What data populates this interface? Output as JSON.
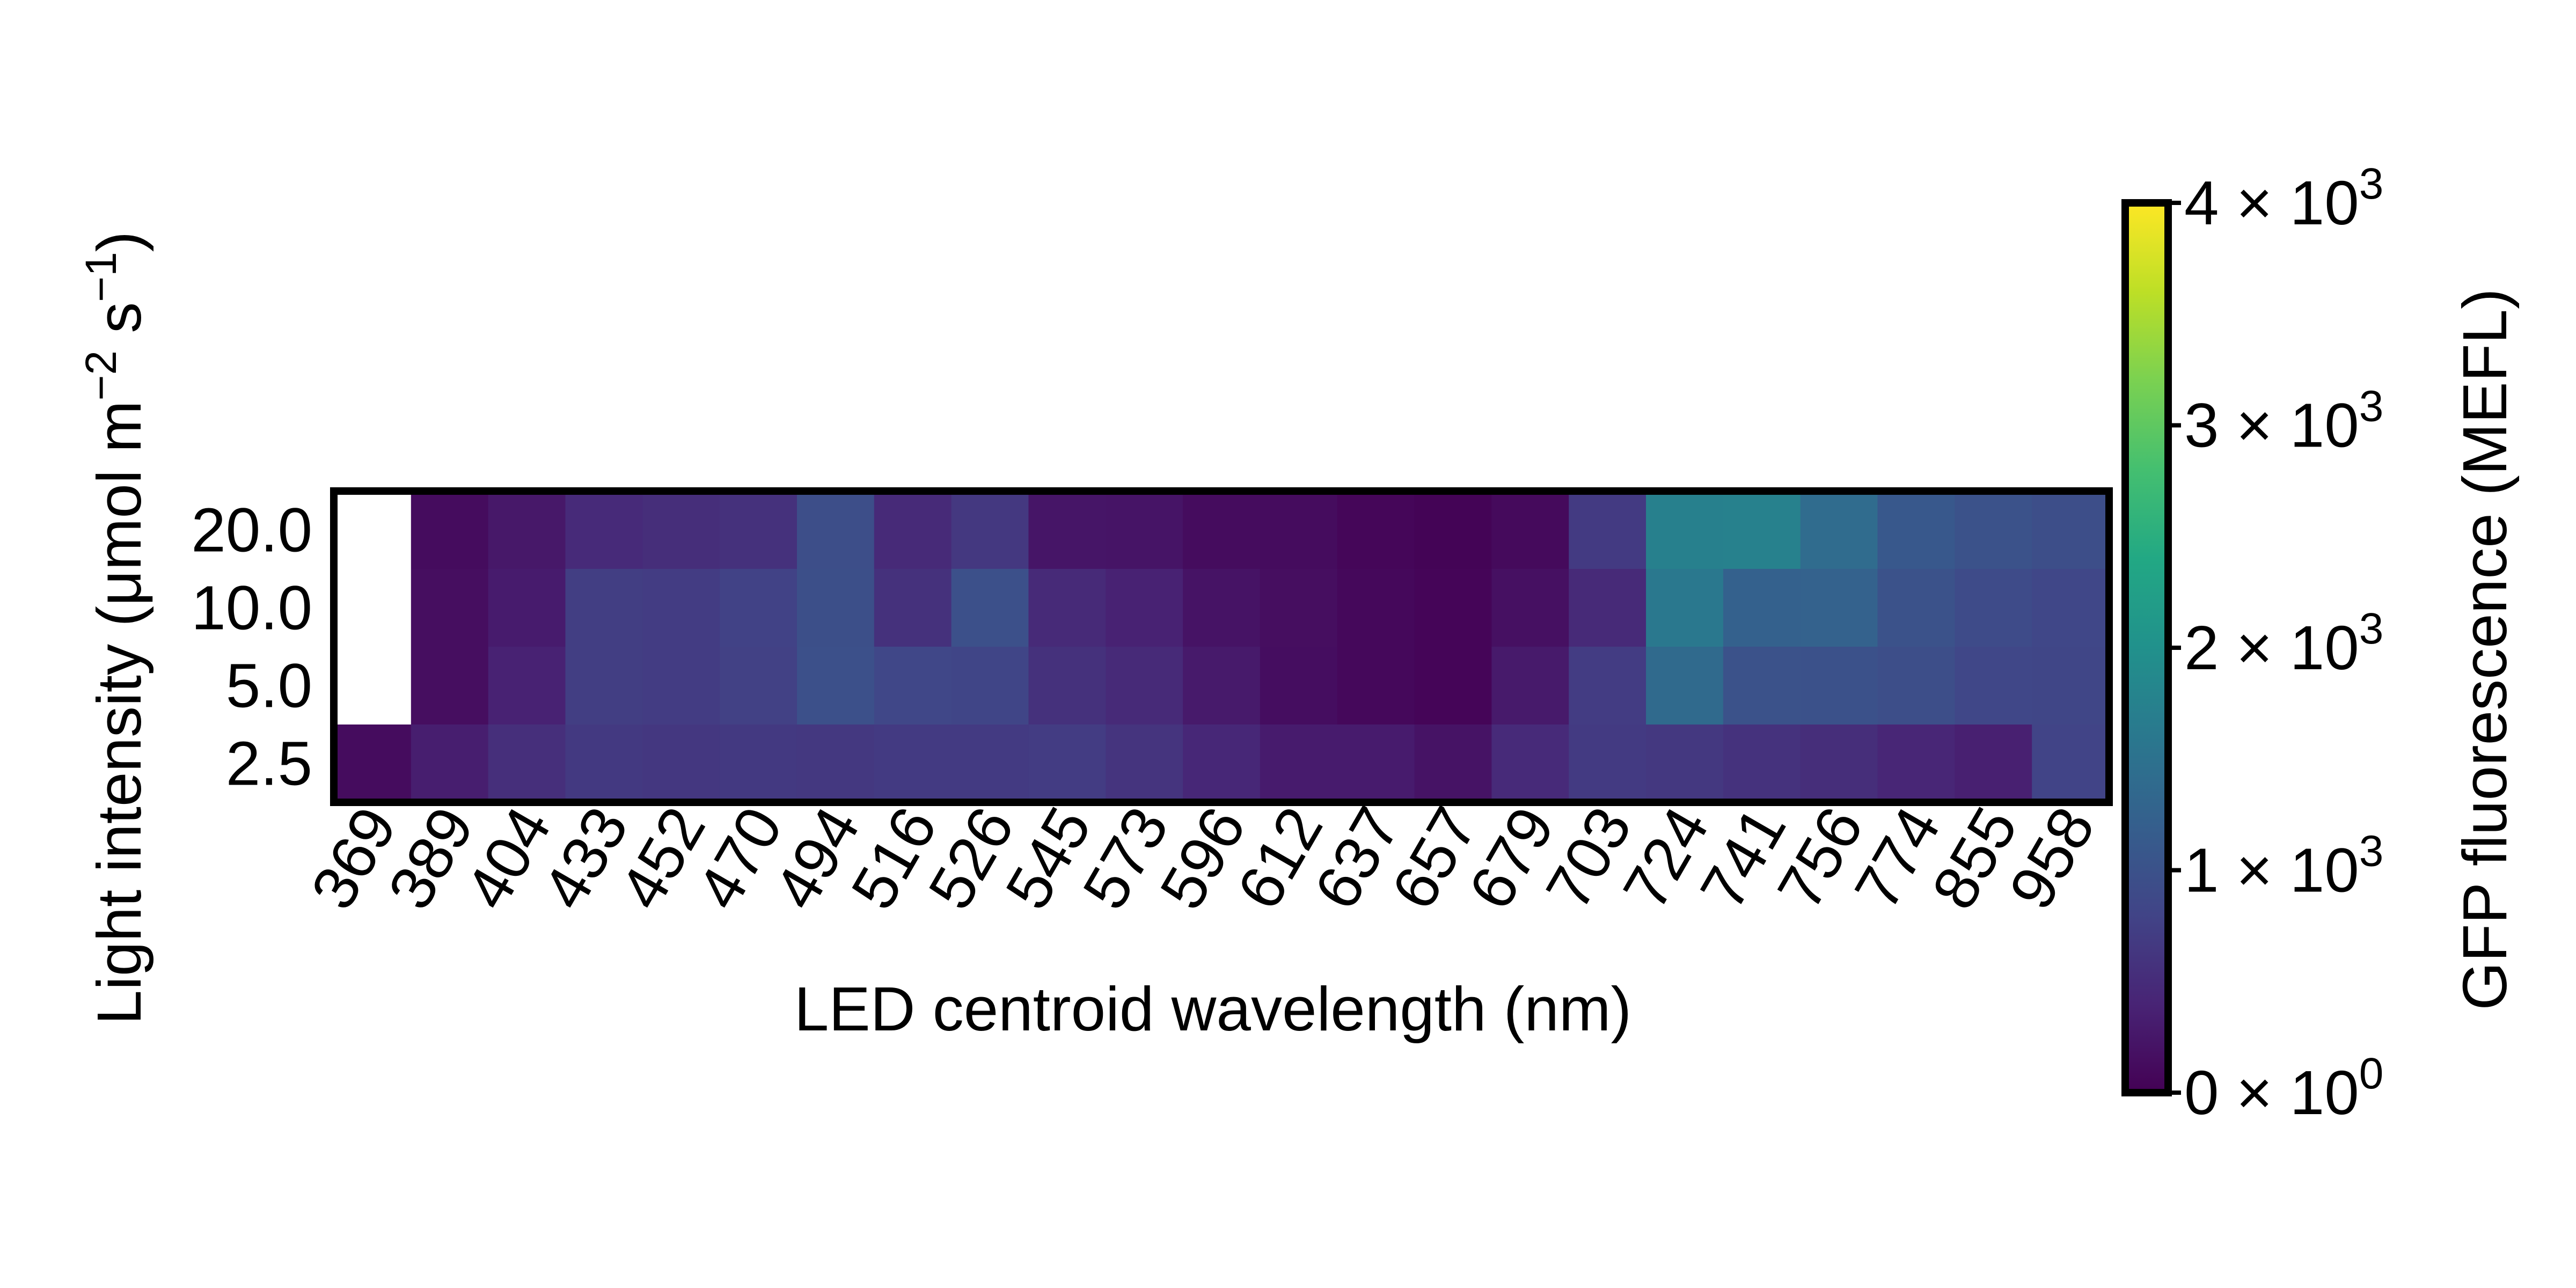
{
  "chart_data": {
    "type": "heatmap",
    "xlabel": "LED centroid wavelength (nm)",
    "ylabel": "Light intensity (μmol m−2 s−1)",
    "ylabel_parts": {
      "main": "Light intensity (μmol m",
      "exp1": "−2",
      "mid": " s",
      "exp2": "−1",
      "end": ")"
    },
    "x_categories": [
      "369",
      "389",
      "404",
      "433",
      "452",
      "470",
      "494",
      "516",
      "526",
      "545",
      "573",
      "596",
      "612",
      "637",
      "657",
      "679",
      "703",
      "724",
      "741",
      "756",
      "774",
      "855",
      "958"
    ],
    "y_categories": [
      "20.0",
      "10.0",
      "5.0",
      "2.5"
    ],
    "values": [
      [
        null,
        120,
        260,
        480,
        520,
        560,
        950,
        470,
        650,
        230,
        220,
        120,
        120,
        60,
        30,
        100,
        680,
        1720,
        1750,
        1400,
        1100,
        1000,
        950
      ],
      [
        null,
        150,
        300,
        720,
        700,
        780,
        960,
        560,
        980,
        470,
        380,
        210,
        150,
        80,
        50,
        170,
        470,
        1600,
        1230,
        1240,
        1000,
        900,
        850
      ],
      [
        null,
        150,
        380,
        720,
        700,
        760,
        980,
        840,
        820,
        560,
        470,
        280,
        140,
        80,
        50,
        280,
        700,
        1380,
        1000,
        990,
        950,
        850,
        830
      ],
      [
        120,
        330,
        540,
        660,
        640,
        660,
        650,
        680,
        680,
        700,
        600,
        440,
        300,
        300,
        210,
        480,
        680,
        650,
        580,
        520,
        420,
        350,
        800
      ]
    ],
    "colorbar": {
      "label": "GFP fluorescence (MEFL)",
      "min": 0,
      "max": 4000,
      "colormap": "viridis",
      "ticks": [
        {
          "value": 0,
          "mantissa": "0",
          "times": "×",
          "base": "10",
          "exp": "0"
        },
        {
          "value": 1000,
          "mantissa": "1",
          "times": "×",
          "base": "10",
          "exp": "3"
        },
        {
          "value": 2000,
          "mantissa": "2",
          "times": "×",
          "base": "10",
          "exp": "3"
        },
        {
          "value": 3000,
          "mantissa": "3",
          "times": "×",
          "base": "10",
          "exp": "3"
        },
        {
          "value": 4000,
          "mantissa": "4",
          "times": "×",
          "base": "10",
          "exp": "3"
        }
      ]
    },
    "missing_color": "#ffffff"
  }
}
